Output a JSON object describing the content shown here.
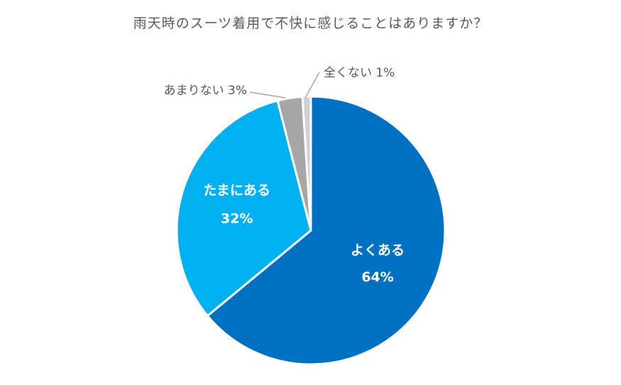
{
  "chart_data": {
    "type": "pie",
    "title": "雨天時のスーツ着用で不快に感じることはありますか？",
    "start_angle_deg": 0,
    "direction": "clockwise",
    "slices": [
      {
        "label": "よくある",
        "value": 64,
        "value_label": "64%",
        "color": "#0070C0",
        "label_position": "inside"
      },
      {
        "label": "たまにある",
        "value": 32,
        "value_label": "32%",
        "color": "#00B0F0",
        "label_position": "inside"
      },
      {
        "label": "あまりない",
        "value": 3,
        "value_label": "3%",
        "color": "#A6A6A6",
        "label_position": "outside"
      },
      {
        "label": "全くない",
        "value": 1,
        "value_label": "1%",
        "color": "#D0D0D0",
        "label_position": "outside"
      }
    ]
  }
}
